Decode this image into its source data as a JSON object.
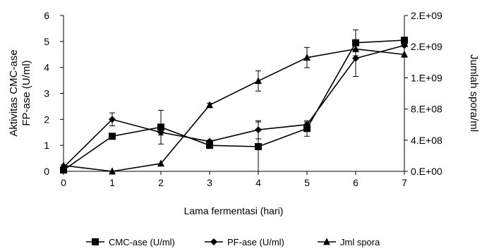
{
  "chart_data": {
    "type": "line",
    "x": [
      0,
      1,
      2,
      3,
      4,
      5,
      6,
      7
    ],
    "xlabel": "Lama fermentasi (hari)",
    "ylabel_lines": [
      "Aktivitas CMC-ase",
      "FP-ase (U/ml)"
    ],
    "y2label": "Jumlah spora/ml",
    "xlim": [
      0,
      7
    ],
    "ylim": [
      0,
      6
    ],
    "y2lim": [
      0,
      2000000000
    ],
    "xticks": [
      "0",
      "1",
      "2",
      "3",
      "4",
      "5",
      "6",
      "7"
    ],
    "yticks": [
      "0",
      "1",
      "2",
      "3",
      "4",
      "5",
      "6"
    ],
    "y2ticks": [
      "0.E+00",
      "4.E+08",
      "8.E+08",
      "1.E+09",
      "2.E+09",
      "2.E+09"
    ],
    "grid": false,
    "legend_position": "bottom",
    "series": [
      {
        "name": "CMC-ase (U/ml)",
        "marker": "square",
        "axis": "left",
        "values": [
          0.05,
          1.35,
          1.7,
          1.0,
          0.95,
          1.65,
          4.95,
          5.05
        ],
        "errors": [
          0.05,
          0.1,
          0.65,
          0.05,
          0.95,
          0.3,
          0.5,
          0.05
        ]
      },
      {
        "name": "PF-ase (U/ml)",
        "marker": "diamond",
        "axis": "left",
        "values": [
          0.15,
          2.0,
          1.5,
          1.15,
          1.6,
          1.8,
          4.35,
          4.85
        ],
        "errors": [
          0.1,
          0.25,
          0.1,
          0.05,
          0.35,
          0.1,
          0.7,
          0.05
        ]
      },
      {
        "name": "Jml spora",
        "marker": "triangle",
        "axis": "right",
        "values": [
          75000000,
          0,
          100000000,
          850000000,
          1160000000,
          1460000000,
          1570000000,
          1500000000
        ],
        "errors": [
          0,
          0,
          0,
          25000000,
          130000000,
          130000000,
          0,
          0
        ]
      }
    ]
  },
  "colors": {
    "line": "#000000",
    "background": "#ffffff"
  }
}
